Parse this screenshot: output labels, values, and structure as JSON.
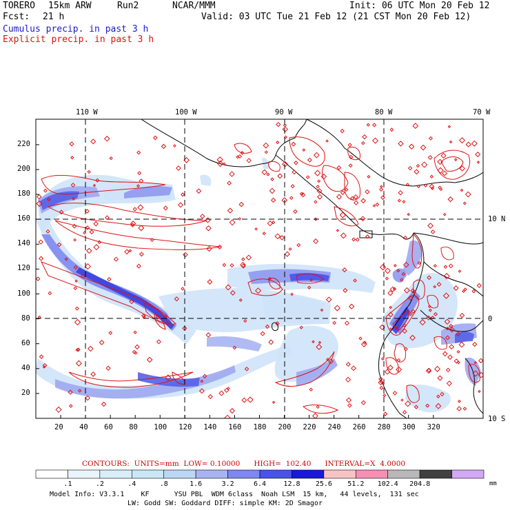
{
  "header": {
    "model": "TORERO",
    "resolution": "15km ARW",
    "run": "Run2",
    "org": "NCAR/MMM",
    "init": "Init: 06 UTC Mon 20 Feb 12",
    "fcst_label": "Fcst:",
    "fcst_hours": "21 h",
    "valid": "Valid: 03 UTC Tue 21 Feb 12 (21 CST Mon 20 Feb 12)",
    "field_shaded": "Cumulus precip. in past 3 h",
    "field_contour": "Explicit precip. in past 3 h",
    "shaded_color": "#1a1acc",
    "contour_color": "#dd1111"
  },
  "map": {
    "lon_labels": [
      "110 W",
      "100 W",
      "90 W",
      "80 W",
      "70 W"
    ],
    "lat_labels": [
      "10 N",
      "0",
      "10 S"
    ],
    "x_ticks": [
      "20",
      "40",
      "60",
      "80",
      "100",
      "120",
      "140",
      "160",
      "180",
      "200",
      "220",
      "240",
      "260",
      "280",
      "300",
      "320"
    ],
    "y_ticks": [
      "20",
      "40",
      "60",
      "80",
      "100",
      "120",
      "140",
      "160",
      "180",
      "200",
      "220"
    ],
    "coast_color": "#000000",
    "grid_color": "#000000"
  },
  "contour_info": {
    "text": "CONTOURS:  UNITS=mm  LOW= 0.10000      HIGH=  102.40      INTERVAL=X  4.0000",
    "color": "#cc0000"
  },
  "colorbar": {
    "labels": [
      ".1",
      ".2",
      ".4",
      ".8",
      "1.6",
      "3.2",
      "6.4",
      "12.8",
      "25.6",
      "51.2",
      "102.4",
      "204.8"
    ],
    "colors": [
      "#ffffff",
      "#eaf4fb",
      "#d9eef9",
      "#cbe6f7",
      "#bcd6f5",
      "#a8b4f2",
      "#7f88ee",
      "#4a52ea",
      "#1a18dd",
      "#f7c4c6",
      "#f490b4",
      "#b8b8b8",
      "#404040",
      "#d2a8f5"
    ],
    "units": "mm"
  },
  "footer": {
    "line1": "Model Info: V3.3.1    KF      YSU PBL  WDM 6class  Noah LSM  15 km,   44 levels,  131 sec",
    "line2": "LW: Godd SW: Goddard DIFF: simple KM: 2D Smagor"
  }
}
